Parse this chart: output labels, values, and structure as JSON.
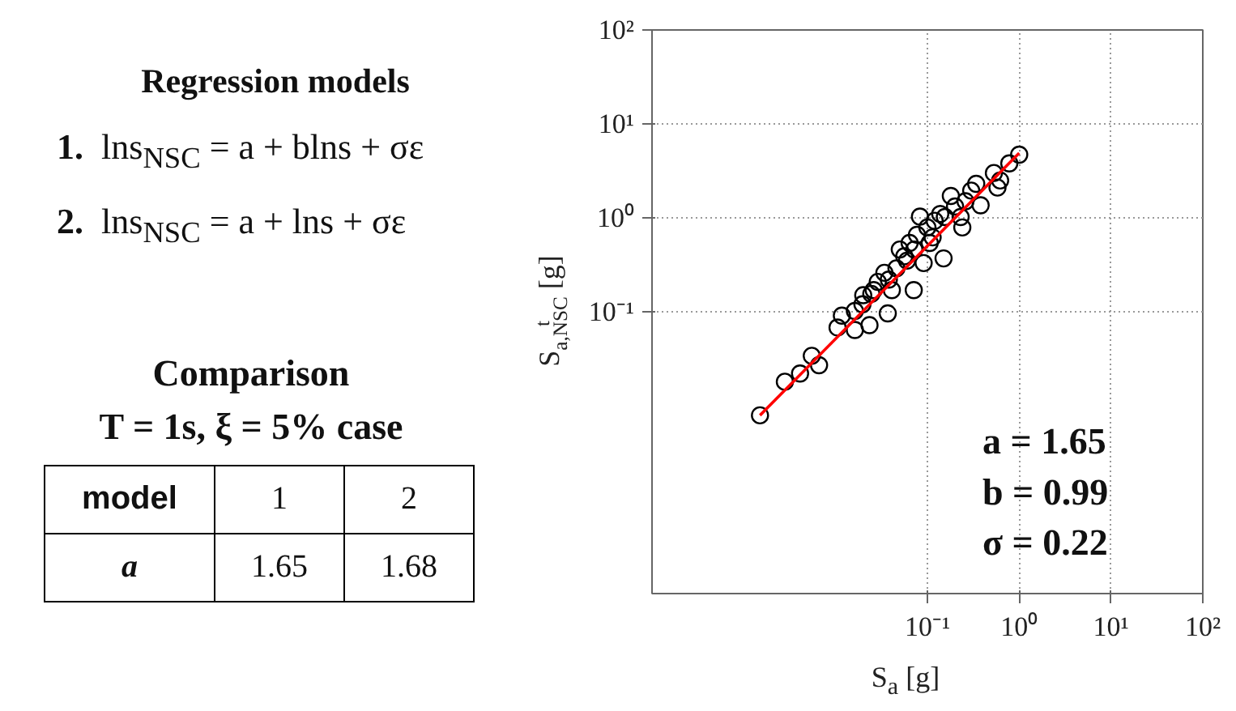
{
  "chart_data": [
    {
      "type": "other",
      "title": "Regression models",
      "annotations": [
        "1. lns$_{NSC}$ = a + blns + σε",
        "2. lns$_{NSC}$ = a + lns + σε"
      ]
    },
    {
      "type": "other",
      "title": "Comparison",
      "subtitle": "T = 1s, ξ = 5% case",
      "xlabel": "model",
      "ylabel": "a",
      "categories": [
        "1",
        "2"
      ],
      "values": [
        1.65,
        1.68
      ],
      "data_labels": true
    },
    {
      "type": "scatter",
      "xlabel": "S$_{a}$ [g]",
      "ylabel": "S$^{t}$$_{a,NSC}$ [g]",
      "log": "xy",
      "grid": true,
      "xlim": [
        0.0001,
        100
      ],
      "ylim": [
        0.0001,
        100
      ],
      "xticks": [
        {
          "value": 0.1,
          "label": "10⁻¹"
        },
        {
          "value": 1,
          "label": "10⁰"
        },
        {
          "value": 10,
          "label": "10¹"
        },
        {
          "value": 100,
          "label": "10²"
        }
      ],
      "yticks": [
        {
          "value": 0.1,
          "label": "10⁻¹"
        },
        {
          "value": 1,
          "label": "10⁰"
        },
        {
          "value": 10,
          "label": "10¹"
        },
        {
          "value": 100,
          "label": "10²"
        }
      ],
      "annotations": [
        "a = 1.65",
        "b = 0.99",
        "σ = 0.22"
      ],
      "series": [
        {
          "color": "#000000",
          "marker": "circle",
          "x": [
            0.0015,
            0.0028,
            0.0041,
            0.0055,
            0.0066,
            0.0105,
            0.0117,
            0.0162,
            0.0162,
            0.0196,
            0.0234,
            0.0245,
            0.0288,
            0.037,
            0.034,
            0.041,
            0.046,
            0.056,
            0.071,
            0.064,
            0.077,
            0.091,
            0.1,
            0.12,
            0.15,
            0.155,
            0.2,
            0.24,
            0.26,
            0.34,
            0.38,
            0.53,
            0.58,
            0.62,
            0.78,
            1.0,
            0.05,
            0.072,
            0.114,
            0.138,
            0.083,
            0.038,
            0.026,
            0.02,
            0.18,
            0.3,
            0.23,
            0.06,
            0.106
          ],
          "values": [
            0.0079,
            0.018,
            0.022,
            0.034,
            0.027,
            0.068,
            0.091,
            0.064,
            0.102,
            0.12,
            0.072,
            0.155,
            0.208,
            0.096,
            0.26,
            0.17,
            0.29,
            0.39,
            0.17,
            0.54,
            0.66,
            0.33,
            0.79,
            0.93,
            0.37,
            1.02,
            1.32,
            0.79,
            1.5,
            2.3,
            1.36,
            3.0,
            2.1,
            2.5,
            3.8,
            4.7,
            0.46,
            0.46,
            0.62,
            1.1,
            1.03,
            0.22,
            0.17,
            0.15,
            1.71,
            1.95,
            1.02,
            0.35,
            0.54
          ]
        },
        {
          "type": "line",
          "color": "#ff0000",
          "x": [
            0.0015,
            1.0
          ],
          "values": [
            0.0079,
            4.9
          ]
        }
      ]
    }
  ]
}
